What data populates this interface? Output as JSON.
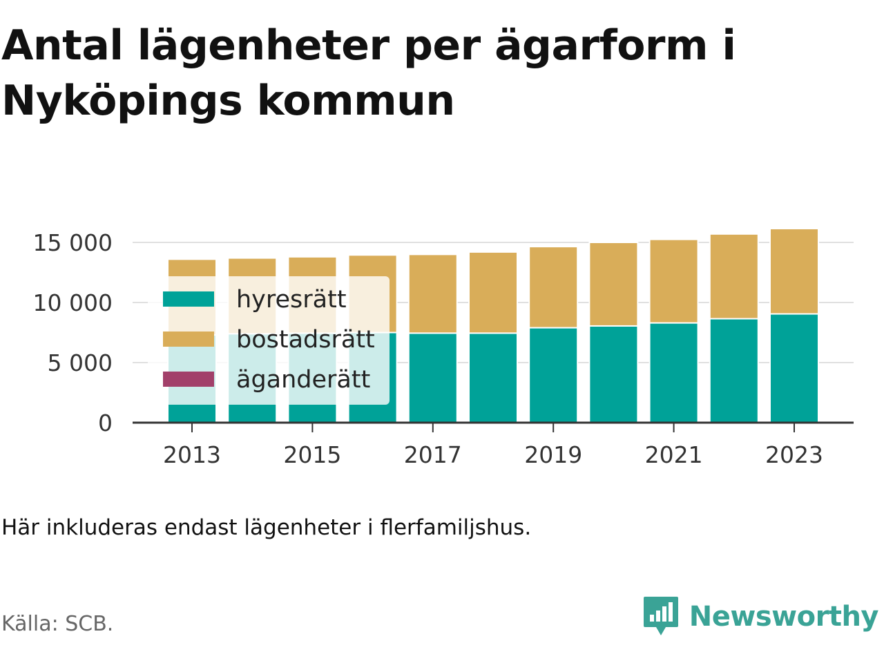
{
  "title": "Antal lägenheter per ägarform i Nyköpings kommun",
  "note": "Här inkluderas endast lägenheter i flerfamiljshus.",
  "source": "Källa: SCB.",
  "brand": {
    "name": "Newsworthy",
    "icon": "newsworthy-logo-icon",
    "color": "#3aa396"
  },
  "chart_data": {
    "type": "bar",
    "stacked": true,
    "categories": [
      "2013",
      "2014",
      "2015",
      "2016",
      "2017",
      "2018",
      "2019",
      "2020",
      "2021",
      "2022",
      "2023"
    ],
    "x_tick_labels": [
      "2013",
      "2015",
      "2017",
      "2019",
      "2021",
      "2023"
    ],
    "y_ticks": [
      0,
      5000,
      10000,
      15000
    ],
    "y_tick_labels": [
      "0",
      "5 000",
      "10 000",
      "15 000"
    ],
    "ylim": [
      0,
      16300
    ],
    "grid": true,
    "legend_position": "top-left",
    "series": [
      {
        "name": "hyresrätt",
        "color": "#00a298",
        "values": [
          7300,
          7400,
          7450,
          7500,
          7450,
          7450,
          7900,
          8050,
          8300,
          8650,
          9050
        ]
      },
      {
        "name": "bostadsrätt",
        "color": "#d9ad59",
        "values": [
          6300,
          6300,
          6350,
          6450,
          6550,
          6750,
          6750,
          6950,
          6950,
          7050,
          7100
        ]
      },
      {
        "name": "äganderätt",
        "color": "#a2406a",
        "values": [
          0,
          0,
          0,
          0,
          0,
          0,
          0,
          0,
          0,
          0,
          0
        ]
      }
    ]
  }
}
